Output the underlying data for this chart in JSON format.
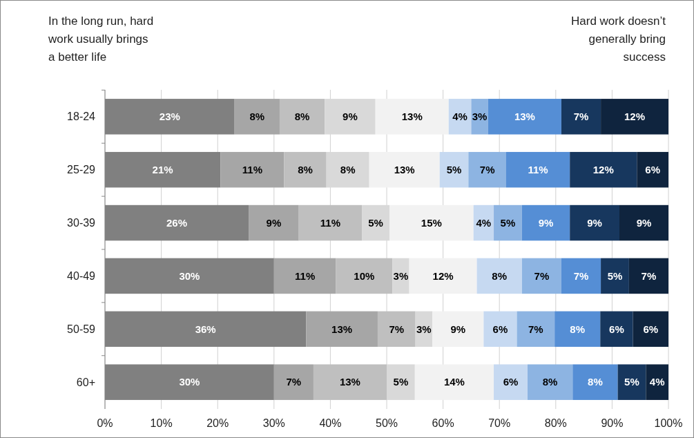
{
  "chart_data": {
    "type": "bar",
    "orientation": "horizontal",
    "stacked": true,
    "grid": "x",
    "annotations": [
      "In the long run, hard\nwork usually brings\na better life",
      "Hard work doesn’t\ngenerally bring\nsuccess"
    ],
    "categories": [
      "18-24",
      "25-29",
      "30-39",
      "40-49",
      "50-59",
      "60+"
    ],
    "xlim": [
      0,
      100
    ],
    "xticks": [
      {
        "value": 0,
        "label": "0%"
      },
      {
        "value": 10,
        "label": "10%"
      },
      {
        "value": 20,
        "label": "20%"
      },
      {
        "value": 30,
        "label": "30%"
      },
      {
        "value": 40,
        "label": "40%"
      },
      {
        "value": 50,
        "label": "50%"
      },
      {
        "value": 60,
        "label": "60%"
      },
      {
        "value": 70,
        "label": "70%"
      },
      {
        "value": 80,
        "label": "80%"
      },
      {
        "value": 90,
        "label": "90%"
      },
      {
        "value": 100,
        "label": "100%"
      }
    ],
    "series": [
      {
        "color": "#808080",
        "values": [
          23,
          20.5,
          25.5,
          30,
          35.7,
          30
        ],
        "value_labels": [
          "23%",
          "21%",
          "26%",
          "30%",
          "36%",
          "30%"
        ]
      },
      {
        "color": "#a6a6a6",
        "values": [
          8,
          11.3,
          8.9,
          11,
          12.7,
          7
        ],
        "value_labels": [
          "8%",
          "11%",
          "9%",
          "11%",
          "13%",
          "7%"
        ]
      },
      {
        "color": "#bfbfbf",
        "values": [
          8,
          7.5,
          11.2,
          10,
          6.7,
          13
        ],
        "value_labels": [
          "8%",
          "8%",
          "11%",
          "10%",
          "7%",
          "13%"
        ]
      },
      {
        "color": "#d9d9d9",
        "values": [
          9,
          7.6,
          4.9,
          3,
          3.0,
          5
        ],
        "value_labels": [
          "9%",
          "8%",
          "5%",
          "3%",
          "3%",
          "5%"
        ]
      },
      {
        "color": "#f2f2f2",
        "values": [
          13,
          12.5,
          14.9,
          12,
          9.1,
          14
        ],
        "value_labels": [
          "13%",
          "13%",
          "15%",
          "12%",
          "9%",
          "14%"
        ]
      },
      {
        "color": "#c6d9f1",
        "values": [
          4,
          5.1,
          3.6,
          8,
          5.9,
          6
        ],
        "value_labels": [
          "4%",
          "5%",
          "4%",
          "8%",
          "6%",
          "6%"
        ]
      },
      {
        "color": "#8db4e2",
        "values": [
          3,
          6.7,
          5.0,
          7,
          6.7,
          8
        ],
        "value_labels": [
          "3%",
          "7%",
          "5%",
          "7%",
          "7%",
          "8%"
        ]
      },
      {
        "color": "#558ed5",
        "values": [
          13,
          11.3,
          8.5,
          7,
          8.1,
          8
        ],
        "value_labels": [
          "13%",
          "11%",
          "9%",
          "7%",
          "8%",
          "8%"
        ]
      },
      {
        "color": "#17375e",
        "values": [
          7,
          11.9,
          8.8,
          5,
          5.8,
          5
        ],
        "value_labels": [
          "7%",
          "12%",
          "9%",
          "5%",
          "6%",
          "5%"
        ]
      },
      {
        "color": "#0f243e",
        "values": [
          12,
          5.6,
          8.7,
          7,
          6.3,
          4
        ],
        "value_labels": [
          "12%",
          "6%",
          "9%",
          "7%",
          "6%",
          "4%"
        ]
      }
    ]
  }
}
